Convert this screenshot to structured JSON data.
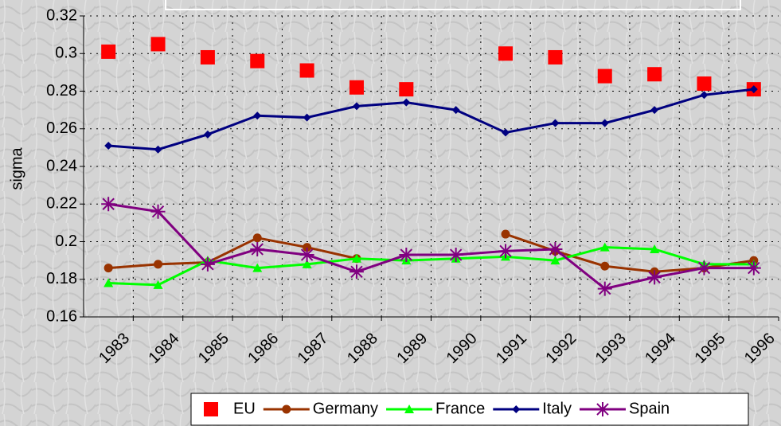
{
  "chart_data": {
    "type": "line",
    "y_label": "sigma",
    "categories": [
      "1983",
      "1984",
      "1985",
      "1986",
      "1987",
      "1988",
      "1989",
      "1990",
      "1991",
      "1992",
      "1993",
      "1994",
      "1995",
      "1996"
    ],
    "ylim": [
      0.16,
      0.32
    ],
    "yticks": [
      0.16,
      0.18,
      0.2,
      0.22,
      0.24,
      0.26,
      0.28,
      0.3,
      0.32
    ],
    "grid": true,
    "legend": "bottom",
    "series": [
      {
        "name": "EU",
        "color": "#ff0000",
        "marker": "square",
        "line": false,
        "values": [
          0.301,
          0.305,
          0.298,
          0.296,
          0.291,
          0.282,
          0.281,
          null,
          0.3,
          0.298,
          0.288,
          0.289,
          0.284,
          0.281
        ]
      },
      {
        "name": "Germany",
        "color": "#993300",
        "marker": "circle",
        "line": true,
        "values": [
          0.186,
          0.188,
          0.189,
          0.202,
          0.197,
          0.191,
          null,
          null,
          0.204,
          0.195,
          0.187,
          0.184,
          0.186,
          0.19
        ]
      },
      {
        "name": "France",
        "color": "#00ff00",
        "marker": "triangle",
        "line": true,
        "values": [
          0.178,
          0.177,
          0.19,
          0.186,
          0.188,
          0.191,
          0.19,
          0.191,
          0.192,
          0.19,
          0.197,
          0.196,
          0.188,
          0.188
        ]
      },
      {
        "name": "Italy",
        "color": "#000080",
        "marker": "diamond",
        "line": true,
        "values": [
          0.251,
          0.249,
          0.257,
          0.267,
          0.266,
          0.272,
          0.274,
          0.27,
          0.258,
          0.263,
          0.263,
          0.27,
          0.278,
          0.281
        ]
      },
      {
        "name": "Spain",
        "color": "#800080",
        "marker": "star",
        "line": true,
        "values": [
          0.22,
          0.216,
          0.188,
          0.196,
          0.193,
          0.184,
          0.193,
          0.193,
          0.195,
          0.196,
          0.175,
          0.181,
          0.186,
          0.186
        ]
      }
    ]
  }
}
